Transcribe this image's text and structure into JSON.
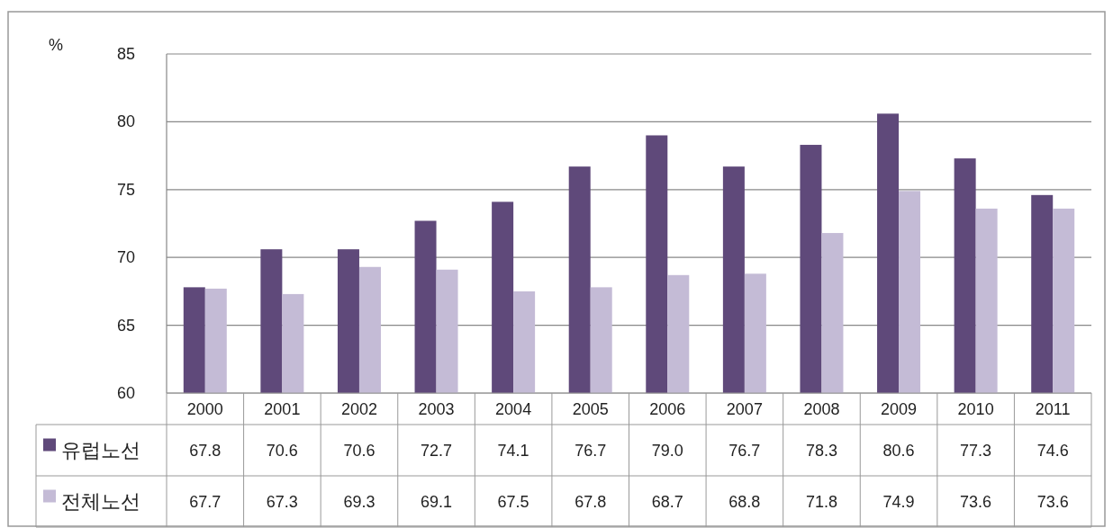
{
  "chart_data": {
    "type": "bar",
    "ylabel": "%",
    "categories": [
      "2000",
      "2001",
      "2002",
      "2003",
      "2004",
      "2005",
      "2006",
      "2007",
      "2008",
      "2009",
      "2010",
      "2011"
    ],
    "series": [
      {
        "name": "유럽노선",
        "color": "#5f497a",
        "values": [
          67.8,
          70.6,
          70.6,
          72.7,
          74.1,
          76.7,
          79.0,
          76.7,
          78.3,
          80.6,
          77.3,
          74.6
        ],
        "value_labels": [
          "67.8",
          "70.6",
          "70.6",
          "72.7",
          "74.1",
          "76.7",
          "79.0",
          "76.7",
          "78.3",
          "80.6",
          "77.3",
          "74.6"
        ]
      },
      {
        "name": "전체노선",
        "color": "#c4bbd6",
        "values": [
          67.7,
          67.3,
          69.3,
          69.1,
          67.5,
          67.8,
          68.7,
          68.8,
          71.8,
          74.9,
          73.6,
          73.6
        ],
        "value_labels": [
          "67.7",
          "67.3",
          "69.3",
          "69.1",
          "67.5",
          "67.8",
          "68.7",
          "68.8",
          "71.8",
          "74.9",
          "73.6",
          "73.6"
        ]
      }
    ],
    "ylim": [
      60,
      85
    ],
    "yticks": [
      60,
      65,
      70,
      75,
      80,
      85
    ],
    "grid": "y",
    "legend": "bottom"
  }
}
